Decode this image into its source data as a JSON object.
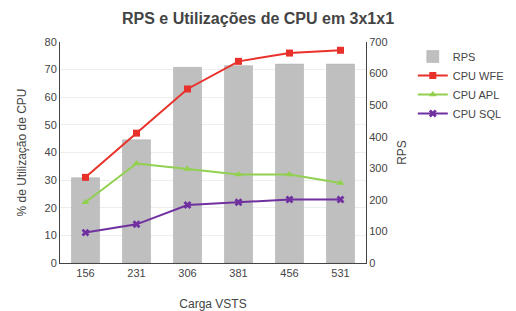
{
  "chart_data": {
    "type": "bar",
    "title": "RPS e Utilizações de CPU em 3x1x1",
    "xlabel": "Carga VSTS",
    "ylabel": "% de Utilização de CPU",
    "y2label": "RPS",
    "categories": [
      156,
      231,
      306,
      381,
      456,
      531
    ],
    "series": [
      {
        "name": "RPS",
        "type": "bar",
        "axis": "y2",
        "color": "#bfbfbf",
        "values": [
          270,
          390,
          620,
          625,
          630,
          630
        ]
      },
      {
        "name": "CPU WFE",
        "type": "line",
        "color": "#e8312a",
        "marker": "square",
        "values": [
          31,
          47,
          63,
          73,
          76,
          77
        ]
      },
      {
        "name": "CPU APL",
        "type": "line",
        "color": "#92d050",
        "marker": "triangle-up",
        "values": [
          22,
          36,
          34,
          32,
          32,
          29
        ]
      },
      {
        "name": "CPU SQL",
        "type": "line",
        "color": "#7030a0",
        "marker": "x",
        "values": [
          11,
          14,
          21,
          22,
          23,
          23
        ]
      }
    ],
    "ylim": [
      0,
      80
    ],
    "yticks": [
      0,
      10,
      20,
      30,
      40,
      50,
      60,
      70,
      80
    ],
    "y2lim": [
      0,
      700
    ],
    "y2ticks": [
      0,
      100,
      200,
      300,
      400,
      500,
      600,
      700
    ],
    "grid": true,
    "legend": "right"
  }
}
